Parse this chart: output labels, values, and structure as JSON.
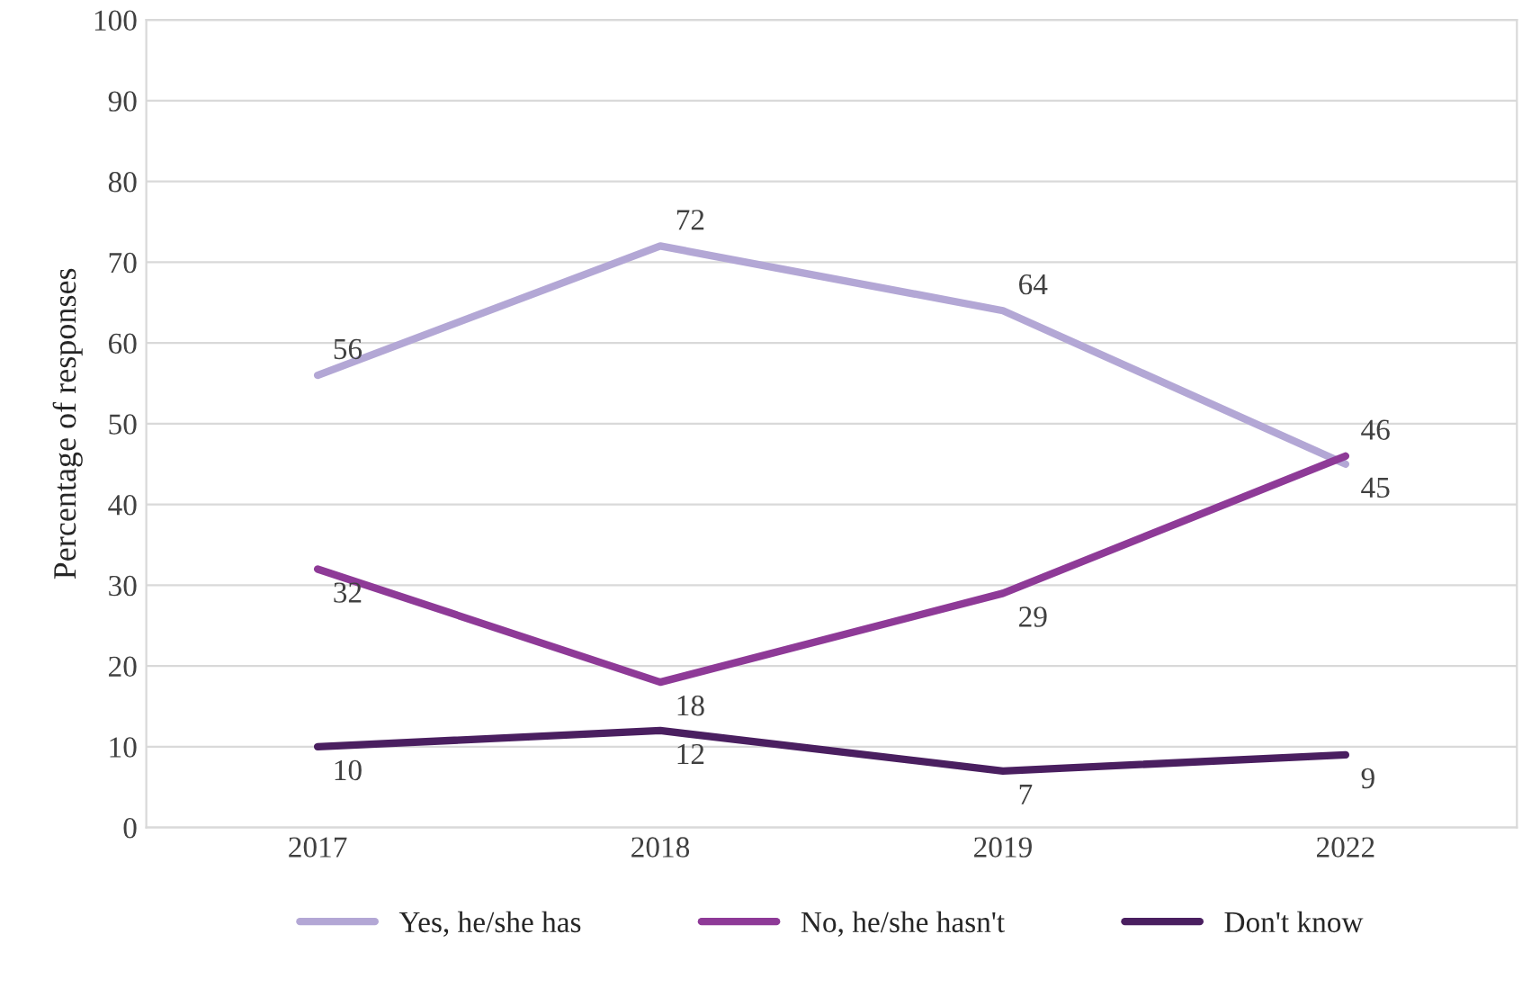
{
  "chart_data": {
    "type": "line",
    "ylabel": "Percentage of responses",
    "categories": [
      "2017",
      "2018",
      "2019",
      "2022"
    ],
    "series": [
      {
        "name": "Yes, he/she has",
        "color": "#b3a7d5",
        "values": [
          56,
          72,
          64,
          45
        ]
      },
      {
        "name": "No, he/she hasn't",
        "color": "#8e3a97",
        "values": [
          32,
          18,
          29,
          46
        ]
      },
      {
        "name": "Don't know",
        "color": "#4a1f60",
        "values": [
          10,
          12,
          7,
          9
        ]
      }
    ],
    "ylim": [
      0,
      100
    ],
    "yticks": [
      0,
      10,
      20,
      30,
      40,
      50,
      60,
      70,
      80,
      90,
      100
    ],
    "grid": "y",
    "legend": "bottom",
    "data_labels": true,
    "marker": "none",
    "line_style": "solid"
  }
}
